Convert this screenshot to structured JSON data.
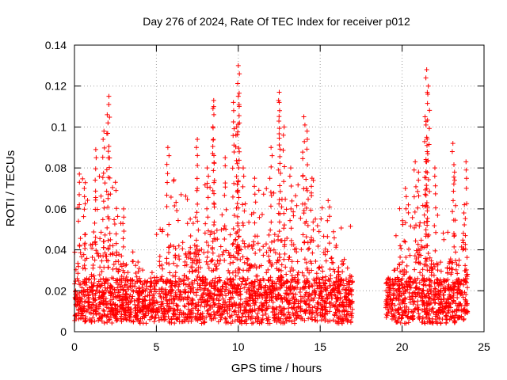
{
  "chart_data": {
    "type": "scatter",
    "title": "Day 276 of 2024, Rate Of TEC Index for receiver p012",
    "xlabel": "GPS time / hours",
    "ylabel": "ROTI / TECUs",
    "xlim": [
      0,
      25
    ],
    "ylim": [
      0,
      0.14
    ],
    "x_ticks": [
      0,
      5,
      10,
      15,
      20,
      25
    ],
    "y_ticks": [
      0,
      0.02,
      0.04,
      0.06,
      0.08,
      0.1,
      0.12,
      0.14
    ],
    "x_tick_labels": [
      "0",
      "5",
      "10",
      "15",
      "20",
      "25"
    ],
    "y_tick_labels": [
      "0",
      "0.02",
      "0.04",
      "0.06",
      "0.08",
      "0.1",
      "0.12",
      "0.14"
    ],
    "grid": true,
    "marker": "+",
    "marker_color": "#ff0000",
    "data_gap": [
      17.0,
      18.9
    ],
    "envelope": {
      "x": [
        0,
        0.5,
        1,
        1.5,
        2,
        2.5,
        3,
        3.5,
        4,
        4.5,
        5,
        5.5,
        6,
        6.5,
        7,
        7.5,
        8,
        8.5,
        9,
        9.5,
        10,
        10.5,
        11,
        11.5,
        12,
        12.5,
        13,
        13.5,
        14,
        14.5,
        15,
        15.5,
        16,
        16.5,
        17,
        19,
        19.5,
        20,
        20.5,
        21,
        21.5,
        22,
        22.5,
        23,
        23.5,
        24
      ],
      "y": [
        0.055,
        0.065,
        0.06,
        0.07,
        0.075,
        0.06,
        0.05,
        0.035,
        0.022,
        0.028,
        0.04,
        0.05,
        0.065,
        0.06,
        0.06,
        0.065,
        0.075,
        0.07,
        0.068,
        0.065,
        0.07,
        0.062,
        0.065,
        0.06,
        0.065,
        0.065,
        0.06,
        0.065,
        0.07,
        0.065,
        0.062,
        0.055,
        0.05,
        0.045,
        0.04,
        0.035,
        0.04,
        0.055,
        0.058,
        0.06,
        0.06,
        0.05,
        0.048,
        0.05,
        0.045,
        0.04
      ]
    },
    "spikes": [
      {
        "x": 0.3,
        "y": 0.077
      },
      {
        "x": 0.6,
        "y": 0.07
      },
      {
        "x": 1.3,
        "y": 0.089
      },
      {
        "x": 1.8,
        "y": 0.098
      },
      {
        "x": 2.1,
        "y": 0.115
      },
      {
        "x": 2.0,
        "y": 0.106
      },
      {
        "x": 2.5,
        "y": 0.073
      },
      {
        "x": 3.0,
        "y": 0.06
      },
      {
        "x": 5.7,
        "y": 0.09
      },
      {
        "x": 7.5,
        "y": 0.094
      },
      {
        "x": 8.1,
        "y": 0.08
      },
      {
        "x": 8.5,
        "y": 0.113
      },
      {
        "x": 8.5,
        "y": 0.11
      },
      {
        "x": 9.2,
        "y": 0.085
      },
      {
        "x": 9.7,
        "y": 0.112
      },
      {
        "x": 10.0,
        "y": 0.13
      },
      {
        "x": 10.0,
        "y": 0.115
      },
      {
        "x": 9.9,
        "y": 0.1
      },
      {
        "x": 10.3,
        "y": 0.08
      },
      {
        "x": 11.0,
        "y": 0.075
      },
      {
        "x": 12.0,
        "y": 0.09
      },
      {
        "x": 12.5,
        "y": 0.117
      },
      {
        "x": 12.5,
        "y": 0.112
      },
      {
        "x": 12.8,
        "y": 0.1
      },
      {
        "x": 13.2,
        "y": 0.08
      },
      {
        "x": 14.0,
        "y": 0.105
      },
      {
        "x": 14.2,
        "y": 0.098
      },
      {
        "x": 14.5,
        "y": 0.075
      },
      {
        "x": 20.2,
        "y": 0.07
      },
      {
        "x": 20.8,
        "y": 0.083
      },
      {
        "x": 21.0,
        "y": 0.078
      },
      {
        "x": 21.5,
        "y": 0.128
      },
      {
        "x": 21.6,
        "y": 0.12
      },
      {
        "x": 21.4,
        "y": 0.105
      },
      {
        "x": 21.5,
        "y": 0.095
      },
      {
        "x": 22.0,
        "y": 0.08
      },
      {
        "x": 23.1,
        "y": 0.092
      },
      {
        "x": 23.2,
        "y": 0.078
      },
      {
        "x": 23.9,
        "y": 0.083
      },
      {
        "x": 23.8,
        "y": 0.062
      }
    ]
  }
}
